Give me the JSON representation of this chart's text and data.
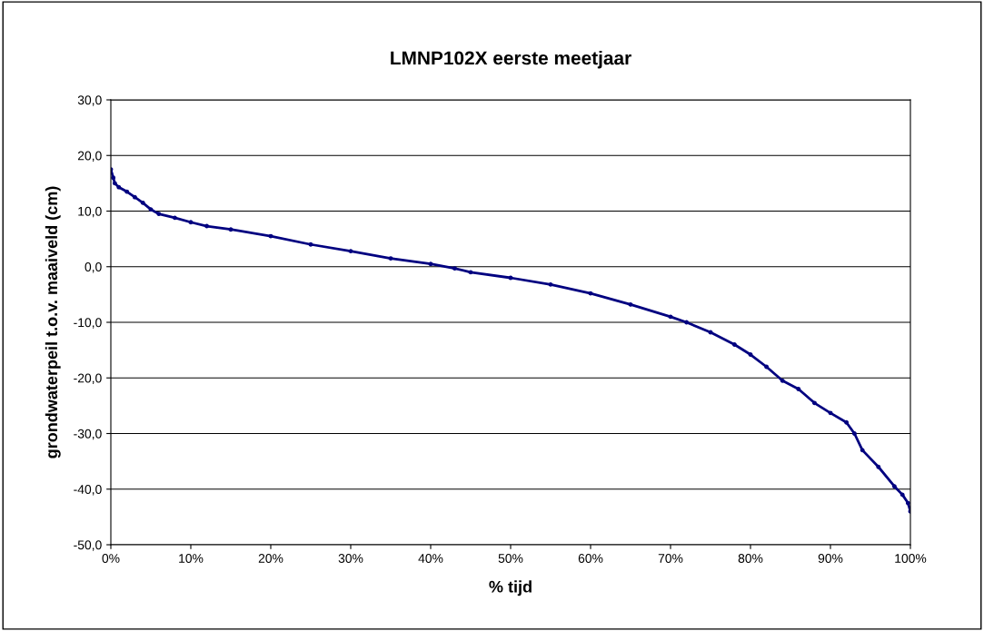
{
  "chart_data": {
    "type": "line",
    "title": "LMNP102X eerste meetjaar",
    "xlabel": "% tijd",
    "ylabel": "grondwaterpeil t.o.v. maaiveld (cm)",
    "series": [
      {
        "color": "#000080",
        "x": [
          0,
          0.3,
          0.5,
          1,
          2,
          3,
          4,
          5,
          6,
          8,
          10,
          12,
          15,
          20,
          25,
          30,
          35,
          40,
          43,
          45,
          50,
          55,
          60,
          65,
          70,
          72,
          75,
          78,
          80,
          82,
          84,
          86,
          88,
          90,
          92,
          93,
          94,
          96,
          98,
          99,
          99.7,
          100
        ],
        "values": [
          17.5,
          16,
          15,
          14.3,
          13.5,
          12.5,
          11.5,
          10.3,
          9.5,
          8.8,
          8,
          7.3,
          6.7,
          5.5,
          4,
          2.8,
          1.5,
          0.5,
          -0.3,
          -1,
          -2,
          -3.2,
          -4.8,
          -6.8,
          -9,
          -10,
          -11.8,
          -14,
          -15.8,
          -18,
          -20.5,
          -22,
          -24.5,
          -26.3,
          -28,
          -30,
          -33,
          -36,
          -39.5,
          -41,
          -42.5,
          -44
        ]
      }
    ],
    "xlim": [
      0,
      100
    ],
    "xticks": [
      {
        "value": 0,
        "label": "0%"
      },
      {
        "value": 10,
        "label": "10%"
      },
      {
        "value": 20,
        "label": "20%"
      },
      {
        "value": 30,
        "label": "30%"
      },
      {
        "value": 40,
        "label": "40%"
      },
      {
        "value": 50,
        "label": "50%"
      },
      {
        "value": 60,
        "label": "60%"
      },
      {
        "value": 70,
        "label": "70%"
      },
      {
        "value": 80,
        "label": "80%"
      },
      {
        "value": 90,
        "label": "90%"
      },
      {
        "value": 100,
        "label": "100%"
      }
    ],
    "ylim": [
      -50,
      30
    ],
    "yticks": [
      {
        "value": -50,
        "label": "-50,0"
      },
      {
        "value": -40,
        "label": "-40,0"
      },
      {
        "value": -30,
        "label": "-30,0"
      },
      {
        "value": -20,
        "label": "-20,0"
      },
      {
        "value": -10,
        "label": "-10,0"
      },
      {
        "value": 0,
        "label": "0,0"
      },
      {
        "value": 10,
        "label": "10,0"
      },
      {
        "value": 20,
        "label": "20,0"
      },
      {
        "value": 30,
        "label": "30,0"
      }
    ],
    "grid": "y",
    "marker": "circle",
    "line_style": "solid",
    "legend": false
  }
}
